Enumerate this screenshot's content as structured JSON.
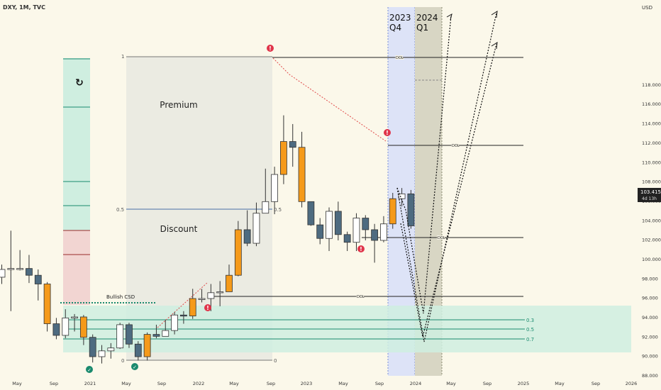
{
  "header": {
    "symbol_label": "DXY, 1M, TVC",
    "currency_label": "USD"
  },
  "price_tag": {
    "price": "103.415",
    "countdown": "4d 13h",
    "value": 103.415
  },
  "colors": {
    "bull": "#ffffff",
    "bear": "#4e6b80",
    "highlight": "#f59a1a",
    "premium_box": "#ebebe2",
    "ob_green": "#cfeee0",
    "ob_red": "#f2d5d2",
    "q4_band": "#dde3f7",
    "q1_band": "#d8d6c4",
    "teal": "#1a8a6e",
    "marker_red": "#e0344a"
  },
  "quarters": [
    {
      "year": "2023",
      "q": "Q4"
    },
    {
      "year": "2024",
      "q": "Q1"
    }
  ],
  "annotations": {
    "premium": "Premium",
    "discount": "Discount",
    "bullish_csd": "Bullish CSD",
    "dol_label": "DOL",
    "level_one": "1",
    "level_half": "0.5",
    "level_zero": "0"
  },
  "fib_levels": [
    "0.3",
    "0.5",
    "0.7"
  ],
  "chart_data": {
    "type": "candlestick",
    "title": "DXY, 1M, TVC",
    "y_unit": "USD",
    "ylim": [
      88,
      119
    ],
    "y_ticks": [
      88,
      90,
      92,
      94,
      96,
      98,
      100,
      102,
      104,
      106,
      108,
      110,
      112,
      114,
      116,
      118
    ],
    "x_tick_labels": [
      "May",
      "Sep",
      "2021",
      "May",
      "Sep",
      "2022",
      "May",
      "Sep",
      "2023",
      "May",
      "Sep",
      "2024",
      "May",
      "Sep",
      "2025",
      "May",
      "Sep",
      "2026"
    ],
    "dol_levels": [
      114.8,
      107.3,
      99.5,
      94.6
    ],
    "candles": [
      {
        "date": "2020-02",
        "o": 98.1,
        "h": 99.4,
        "l": 97.4,
        "c": 98.9
      },
      {
        "date": "2020-03",
        "o": 98.9,
        "h": 102.9,
        "l": 94.6,
        "c": 99.0
      },
      {
        "date": "2020-04",
        "o": 99.0,
        "h": 100.9,
        "l": 98.8,
        "c": 99.0
      },
      {
        "date": "2020-05",
        "o": 99.0,
        "h": 100.4,
        "l": 97.5,
        "c": 98.3
      },
      {
        "date": "2020-06",
        "o": 98.3,
        "h": 98.9,
        "l": 95.7,
        "c": 97.4
      },
      {
        "date": "2020-07",
        "o": 97.4,
        "h": 97.6,
        "l": 92.5,
        "c": 93.3
      },
      {
        "date": "2020-08",
        "o": 93.3,
        "h": 93.9,
        "l": 91.7,
        "c": 92.1
      },
      {
        "date": "2020-09",
        "o": 92.1,
        "h": 94.8,
        "l": 91.8,
        "c": 93.9
      },
      {
        "date": "2020-10",
        "o": 93.9,
        "h": 94.3,
        "l": 92.5,
        "c": 94.0
      },
      {
        "date": "2020-11",
        "o": 94.0,
        "h": 94.2,
        "l": 91.1,
        "c": 91.9
      },
      {
        "date": "2020-12",
        "o": 91.9,
        "h": 92.2,
        "l": 89.3,
        "c": 89.9
      },
      {
        "date": "2021-01",
        "o": 89.9,
        "h": 91.1,
        "l": 89.2,
        "c": 90.5
      },
      {
        "date": "2021-02",
        "o": 90.5,
        "h": 91.3,
        "l": 89.7,
        "c": 90.8
      },
      {
        "date": "2021-03",
        "o": 90.8,
        "h": 93.4,
        "l": 90.7,
        "c": 93.2
      },
      {
        "date": "2021-04",
        "o": 93.2,
        "h": 93.4,
        "l": 90.8,
        "c": 91.2
      },
      {
        "date": "2021-05",
        "o": 91.2,
        "h": 91.5,
        "l": 89.5,
        "c": 89.9
      },
      {
        "date": "2021-06",
        "o": 89.9,
        "h": 92.4,
        "l": 89.5,
        "c": 92.2
      },
      {
        "date": "2021-07",
        "o": 92.2,
        "h": 93.2,
        "l": 91.8,
        "c": 92.0
      },
      {
        "date": "2021-08",
        "o": 92.0,
        "h": 93.7,
        "l": 92.0,
        "c": 92.6
      },
      {
        "date": "2021-09",
        "o": 92.6,
        "h": 94.5,
        "l": 92.2,
        "c": 94.2
      },
      {
        "date": "2021-10",
        "o": 94.2,
        "h": 94.6,
        "l": 93.3,
        "c": 94.1
      },
      {
        "date": "2021-11",
        "o": 94.1,
        "h": 96.9,
        "l": 93.8,
        "c": 95.9
      },
      {
        "date": "2021-12",
        "o": 95.9,
        "h": 96.9,
        "l": 95.5,
        "c": 95.9
      },
      {
        "date": "2022-01",
        "o": 95.9,
        "h": 97.4,
        "l": 94.6,
        "c": 96.5
      },
      {
        "date": "2022-02",
        "o": 96.5,
        "h": 97.7,
        "l": 95.1,
        "c": 96.6
      },
      {
        "date": "2022-03",
        "o": 96.6,
        "h": 99.4,
        "l": 96.6,
        "c": 98.3
      },
      {
        "date": "2022-04",
        "o": 98.3,
        "h": 103.9,
        "l": 98.2,
        "c": 103.0
      },
      {
        "date": "2022-05",
        "o": 103.0,
        "h": 105.0,
        "l": 101.3,
        "c": 101.6
      },
      {
        "date": "2022-06",
        "o": 101.6,
        "h": 105.8,
        "l": 101.3,
        "c": 104.7
      },
      {
        "date": "2022-07",
        "o": 104.7,
        "h": 109.3,
        "l": 104.7,
        "c": 105.9
      },
      {
        "date": "2022-08",
        "o": 105.9,
        "h": 109.5,
        "l": 104.6,
        "c": 108.7
      },
      {
        "date": "2022-09",
        "o": 108.7,
        "h": 114.8,
        "l": 107.7,
        "c": 112.1
      },
      {
        "date": "2022-10",
        "o": 112.1,
        "h": 113.9,
        "l": 109.5,
        "c": 111.5
      },
      {
        "date": "2022-11",
        "o": 111.5,
        "h": 113.1,
        "l": 105.3,
        "c": 105.9
      },
      {
        "date": "2022-12",
        "o": 105.9,
        "h": 105.8,
        "l": 103.4,
        "c": 103.5
      },
      {
        "date": "2023-01",
        "o": 103.5,
        "h": 104.2,
        "l": 101.5,
        "c": 102.1
      },
      {
        "date": "2023-02",
        "o": 102.1,
        "h": 105.3,
        "l": 100.8,
        "c": 104.9
      },
      {
        "date": "2023-03",
        "o": 104.9,
        "h": 105.9,
        "l": 101.9,
        "c": 102.5
      },
      {
        "date": "2023-04",
        "o": 102.5,
        "h": 102.8,
        "l": 100.8,
        "c": 101.7
      },
      {
        "date": "2023-05",
        "o": 101.7,
        "h": 104.7,
        "l": 100.8,
        "c": 104.2
      },
      {
        "date": "2023-06",
        "o": 104.2,
        "h": 104.5,
        "l": 101.9,
        "c": 103.0
      },
      {
        "date": "2023-07",
        "o": 103.0,
        "h": 103.6,
        "l": 99.6,
        "c": 101.9
      },
      {
        "date": "2023-08",
        "o": 101.9,
        "h": 104.4,
        "l": 101.7,
        "c": 103.6
      },
      {
        "date": "2023-09",
        "o": 103.6,
        "h": 106.8,
        "l": 103.1,
        "c": 106.2
      },
      {
        "date": "2023-10",
        "o": 106.2,
        "h": 107.3,
        "l": 105.4,
        "c": 106.7
      },
      {
        "date": "2023-11",
        "o": 106.7,
        "h": 107.1,
        "l": 103.1,
        "c": 103.4
      }
    ]
  }
}
